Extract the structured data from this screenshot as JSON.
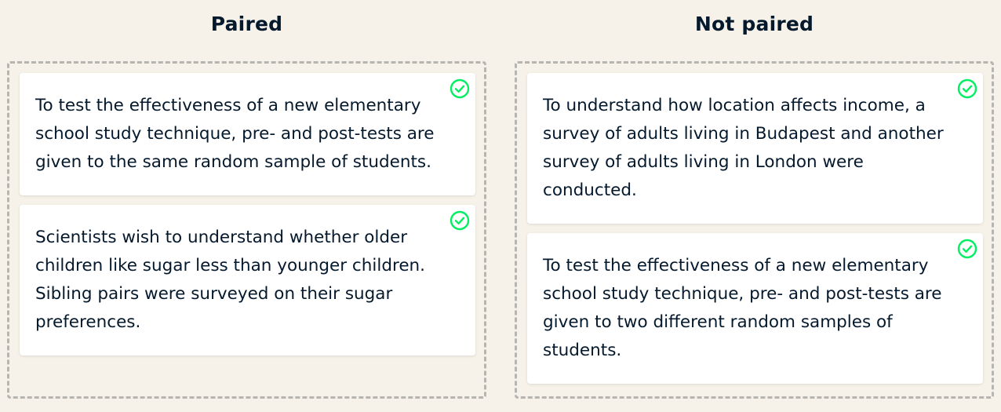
{
  "columns": [
    {
      "title": "Paired",
      "cards": [
        {
          "text": "To test the effectiveness of a new elementary school study technique, pre- and post-tests are given to the same random sample of students.",
          "status": "correct"
        },
        {
          "text": "Scientists wish to understand whether older children like sugar less than younger children. Sibling pairs were surveyed on their sugar preferences.",
          "status": "correct"
        }
      ]
    },
    {
      "title": "Not paired",
      "cards": [
        {
          "text": "To understand how location affects income, a survey of adults living in Budapest and another survey of adults living in London were conducted.",
          "status": "correct"
        },
        {
          "text": "To test the effectiveness of a new elementary school study technique, pre- and post-tests are given to two different random samples of students.",
          "status": "correct"
        }
      ]
    }
  ],
  "icons": {
    "correct": "check-circle-icon"
  },
  "colors": {
    "background": "#f6f2ea",
    "card": "#ffffff",
    "text": "#05192d",
    "check": "#03ef62",
    "dashed_border": "#b7b5b0"
  }
}
